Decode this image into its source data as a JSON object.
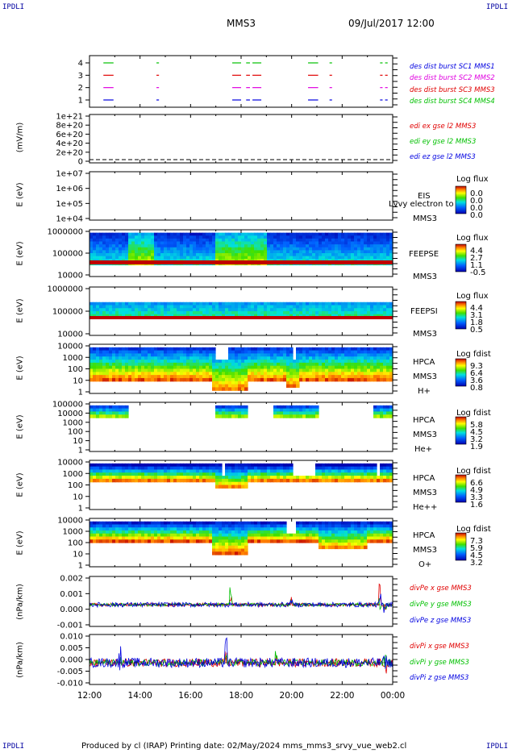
{
  "corner_label": "IPDLI",
  "header": {
    "spacecraft": "MMS3",
    "datetime": "09/Jul/2017 12:00"
  },
  "time_ticks": [
    "12:00",
    "14:00",
    "16:00",
    "18:00",
    "20:00",
    "22:00",
    "00:00"
  ],
  "footer": "Produced by cl (IRAP)   Printing date: 02/May/2024   mms_mms3_srvy_vue_web2.cl",
  "colors": {
    "red": "#e00000",
    "green": "#00c000",
    "magenta": "#e000e0",
    "blue": "#0000e0",
    "header_blue": "#0000a0"
  },
  "chart_data": [
    {
      "id": "burst",
      "type": "scatter",
      "yticks": [
        "1",
        "2",
        "3",
        "4"
      ],
      "series": [
        {
          "name": "des dist burst SC1 MMS1",
          "color": "#00c000",
          "level": 4
        },
        {
          "name": "des dist burst SC2 MMS2",
          "color": "#e000e0",
          "level": 2
        },
        {
          "name": "des dist burst SC3 MMS3",
          "color": "#e00000",
          "level": 3
        },
        {
          "name": "des dist burst SC4 MMS4",
          "color": "#0000e0",
          "level": 1
        }
      ],
      "legend": [
        "des dist burst SC1 MMS1",
        "des dist burst SC2 MMS2",
        "des dist burst SC3 MMS3",
        "des dist burst SC4 MMS4"
      ],
      "segments": [
        [
          12.55,
          12.95
        ],
        [
          14.65,
          14.75
        ],
        [
          17.65,
          18.0
        ],
        [
          18.2,
          18.35
        ],
        [
          18.45,
          18.8
        ],
        [
          20.65,
          21.05
        ],
        [
          21.5,
          21.6
        ],
        [
          23.5,
          23.6
        ],
        [
          23.7,
          23.8
        ]
      ]
    },
    {
      "id": "edi",
      "type": "line",
      "ylabel": "(mV/m)",
      "yticks": [
        "1e+21",
        "8e+20",
        "6e+20",
        "4e+20",
        "2e+20",
        "0"
      ],
      "legend": [
        "edi ex gse l2 MMS3",
        "edi ey gse l2 MMS3",
        "edi ez gse l2 MMS3"
      ]
    },
    {
      "id": "eis",
      "type": "heatmap",
      "ylabel": "E (eV)",
      "yticks": [
        "1e+07",
        "1e+06",
        "1e+05",
        "1e+04"
      ],
      "labels": [
        "EIS",
        "MMS3"
      ],
      "overlay": "Lvvy electron to",
      "cb_title": "Log flux",
      "cb_values": [
        "0.0",
        "0.0",
        "0.0",
        "0.0"
      ]
    },
    {
      "id": "feepse",
      "type": "heatmap",
      "ylabel": "E (eV)",
      "yticks": [
        "1000000",
        "100000",
        "10000"
      ],
      "labels": [
        "FEEPSE",
        "MMS3"
      ],
      "cb_title": "Log flux",
      "cb_values": [
        "4.4",
        "2.7",
        "1.1",
        "-0.5"
      ]
    },
    {
      "id": "feepsi",
      "type": "heatmap",
      "ylabel": "E (eV)",
      "yticks": [
        "1000000",
        "100000",
        "10000"
      ],
      "labels": [
        "FEEPSI",
        "MMS3"
      ],
      "cb_title": "Log flux",
      "cb_values": [
        "4.4",
        "3.1",
        "1.8",
        "0.5"
      ]
    },
    {
      "id": "hpca_h",
      "type": "heatmap",
      "ylabel": "E (eV)",
      "yticks": [
        "10000",
        "1000",
        "100",
        "10",
        "1"
      ],
      "labels": [
        "HPCA",
        "MMS3",
        "H+"
      ],
      "cb_title": "Log fdist",
      "cb_values": [
        "9.3",
        "6.4",
        "3.6",
        "0.8"
      ]
    },
    {
      "id": "hpca_he",
      "type": "heatmap",
      "ylabel": "E (eV)",
      "yticks": [
        "100000",
        "10000",
        "1000",
        "100",
        "10",
        "1"
      ],
      "labels": [
        "HPCA",
        "MMS3",
        "He+"
      ],
      "cb_title": "Log fdist",
      "cb_values": [
        "5.8",
        "4.5",
        "3.2",
        "1.9"
      ]
    },
    {
      "id": "hpca_hepp",
      "type": "heatmap",
      "ylabel": "E (eV)",
      "yticks": [
        "10000",
        "1000",
        "100",
        "10",
        "1"
      ],
      "labels": [
        "HPCA",
        "MMS3",
        "He++"
      ],
      "cb_title": "Log fdist",
      "cb_values": [
        "6.6",
        "4.9",
        "3.3",
        "1.6"
      ]
    },
    {
      "id": "hpca_o",
      "type": "heatmap",
      "ylabel": "E (eV)",
      "yticks": [
        "10000",
        "1000",
        "100",
        "10",
        "1"
      ],
      "labels": [
        "HPCA",
        "MMS3",
        "O+"
      ],
      "cb_title": "Log fdist",
      "cb_values": [
        "7.3",
        "5.9",
        "4.5",
        "3.2"
      ]
    },
    {
      "id": "divpe",
      "type": "line",
      "ylabel": "(nPa/km)",
      "yticks": [
        "0.002",
        "0.001",
        "0.000",
        "-0.001"
      ],
      "legend": [
        "divPe x gse MMS3",
        "divPe y gse MMS3",
        "divPe z gse MMS3"
      ]
    },
    {
      "id": "divpi",
      "type": "line",
      "ylabel": "(nPa/km)",
      "yticks": [
        "0.010",
        "0.005",
        "0.000",
        "-0.005",
        "-0.010"
      ],
      "legend": [
        "divPi x gse MMS3",
        "divPi y gse MMS3",
        "divPi z gse MMS3"
      ]
    }
  ]
}
